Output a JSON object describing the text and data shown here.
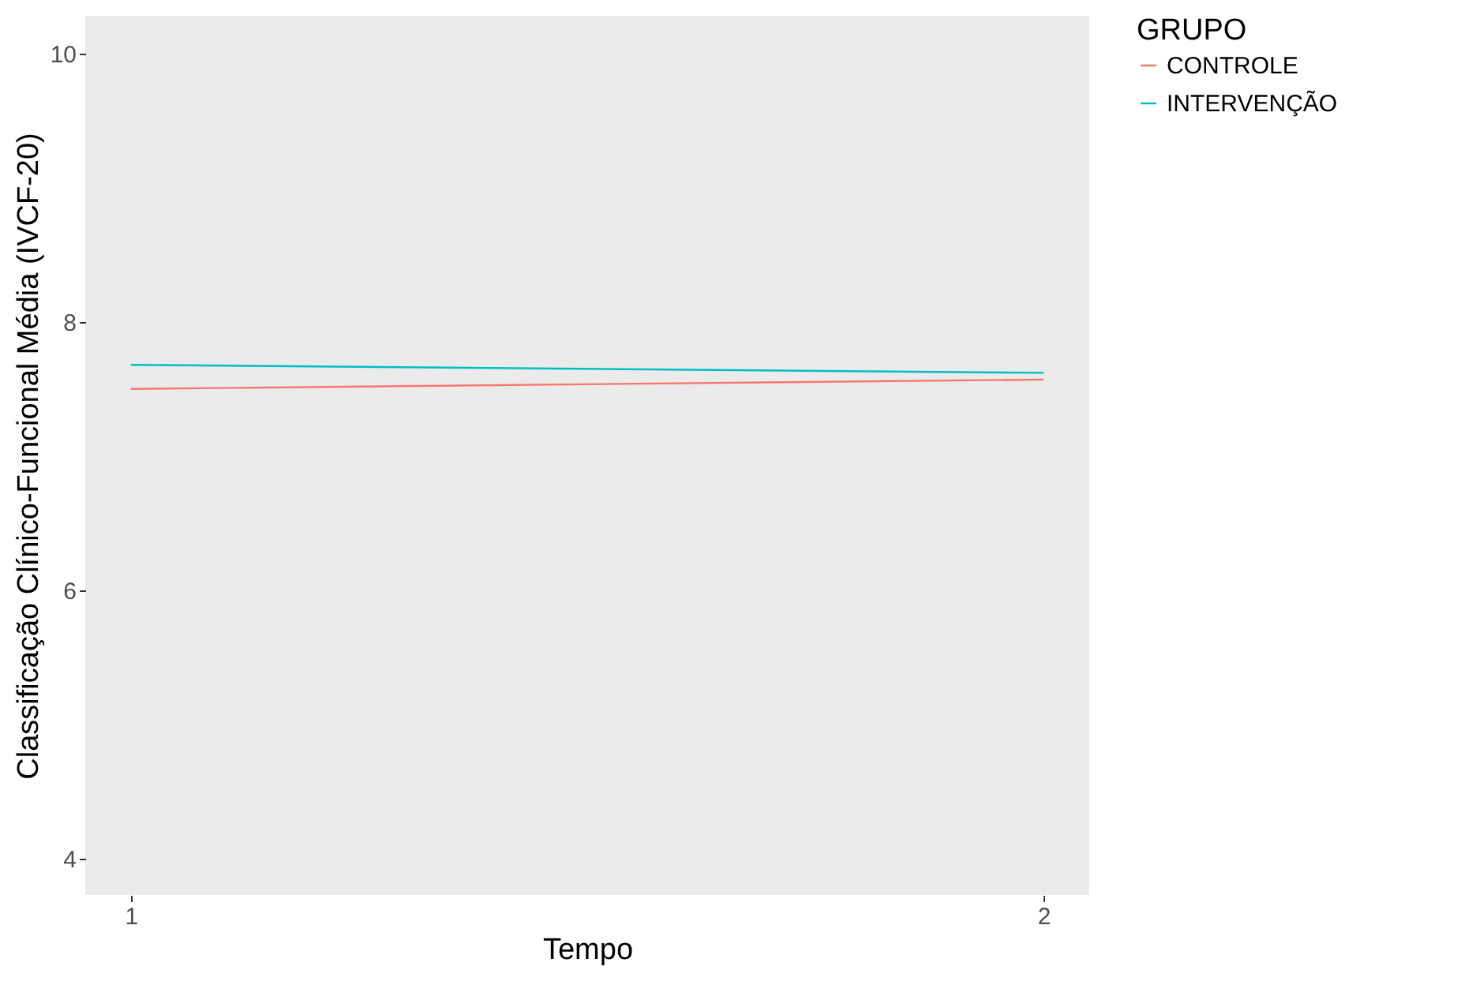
{
  "chart_data": {
    "type": "line",
    "xlabel": "Tempo",
    "ylabel": "Classificação Clínico-Funcional Média (IVCF-20)",
    "legend_title": "GRUPO",
    "legend": "right",
    "x": [
      1,
      2
    ],
    "xlim": [
      0.95,
      2.05
    ],
    "xticks": [
      1,
      2
    ],
    "ylim": [
      3.73,
      10.28
    ],
    "yticks": [
      4,
      6,
      8,
      10
    ],
    "grid": false,
    "series": [
      {
        "name": "CONTROLE",
        "color": "#f8766d",
        "values": [
          7.5,
          7.57
        ]
      },
      {
        "name": "INTERVENÇÃO",
        "color": "#00bfc4",
        "values": [
          7.68,
          7.62
        ]
      }
    ]
  }
}
